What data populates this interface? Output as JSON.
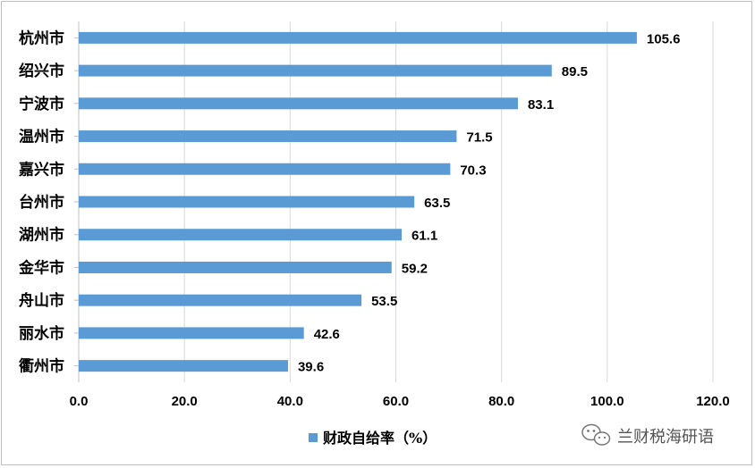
{
  "chart_data": {
    "type": "bar",
    "orientation": "horizontal",
    "categories": [
      "杭州市",
      "绍兴市",
      "宁波市",
      "温州市",
      "嘉兴市",
      "台州市",
      "湖州市",
      "金华市",
      "舟山市",
      "丽水市",
      "衢州市"
    ],
    "series": [
      {
        "name": "财政自给率（%）",
        "values": [
          105.6,
          89.5,
          83.1,
          71.5,
          70.3,
          63.5,
          61.1,
          59.2,
          53.5,
          42.6,
          39.6
        ],
        "color": "#5b9bd5"
      }
    ],
    "xlim": [
      0,
      120
    ],
    "xticks": [
      "0.0",
      "20.0",
      "40.0",
      "60.0",
      "80.0",
      "100.0",
      "120.0"
    ],
    "grid": true,
    "legend_position": "bottom",
    "gridline_color": "#d9d9d9",
    "axis_color": "#bfbfbf"
  },
  "watermark": {
    "text": "兰财税海研语",
    "icon": "wechat-icon"
  }
}
